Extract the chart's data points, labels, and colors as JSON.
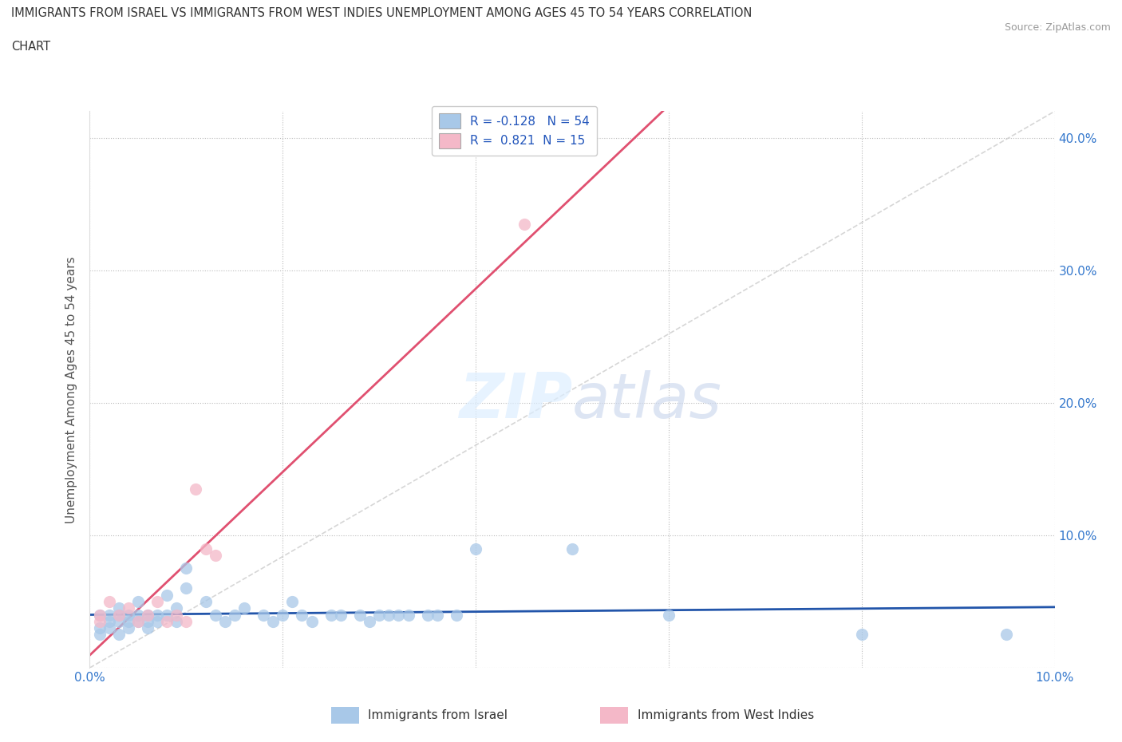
{
  "title_line1": "IMMIGRANTS FROM ISRAEL VS IMMIGRANTS FROM WEST INDIES UNEMPLOYMENT AMONG AGES 45 TO 54 YEARS CORRELATION",
  "title_line2": "CHART",
  "source": "Source: ZipAtlas.com",
  "ylabel": "Unemployment Among Ages 45 to 54 years",
  "xlim": [
    0.0,
    0.1
  ],
  "ylim": [
    0.0,
    0.42
  ],
  "israel_color": "#a8c8e8",
  "west_indies_color": "#f4b8c8",
  "israel_line_color": "#2255aa",
  "west_indies_line_color": "#e05070",
  "diagonal_color": "#cccccc",
  "israel_R": -0.128,
  "israel_N": 54,
  "west_indies_R": 0.821,
  "west_indies_N": 15,
  "legend_label_israel": "Immigrants from Israel",
  "legend_label_west_indies": "Immigrants from West Indies",
  "israel_x": [
    0.001,
    0.001,
    0.001,
    0.002,
    0.002,
    0.002,
    0.003,
    0.003,
    0.003,
    0.003,
    0.004,
    0.004,
    0.004,
    0.005,
    0.005,
    0.005,
    0.006,
    0.006,
    0.006,
    0.007,
    0.007,
    0.008,
    0.008,
    0.009,
    0.009,
    0.01,
    0.01,
    0.012,
    0.013,
    0.014,
    0.015,
    0.016,
    0.018,
    0.019,
    0.02,
    0.021,
    0.022,
    0.023,
    0.025,
    0.026,
    0.028,
    0.029,
    0.03,
    0.031,
    0.032,
    0.033,
    0.035,
    0.036,
    0.038,
    0.04,
    0.05,
    0.06,
    0.08,
    0.095
  ],
  "israel_y": [
    0.04,
    0.03,
    0.025,
    0.04,
    0.035,
    0.03,
    0.045,
    0.04,
    0.035,
    0.025,
    0.04,
    0.035,
    0.03,
    0.05,
    0.04,
    0.035,
    0.04,
    0.035,
    0.03,
    0.04,
    0.035,
    0.055,
    0.04,
    0.045,
    0.035,
    0.075,
    0.06,
    0.05,
    0.04,
    0.035,
    0.04,
    0.045,
    0.04,
    0.035,
    0.04,
    0.05,
    0.04,
    0.035,
    0.04,
    0.04,
    0.04,
    0.035,
    0.04,
    0.04,
    0.04,
    0.04,
    0.04,
    0.04,
    0.04,
    0.09,
    0.09,
    0.04,
    0.025,
    0.025
  ],
  "west_indies_x": [
    0.001,
    0.001,
    0.002,
    0.003,
    0.004,
    0.005,
    0.006,
    0.007,
    0.008,
    0.009,
    0.01,
    0.011,
    0.012,
    0.013,
    0.045
  ],
  "west_indies_y": [
    0.04,
    0.035,
    0.05,
    0.04,
    0.045,
    0.035,
    0.04,
    0.05,
    0.035,
    0.04,
    0.035,
    0.135,
    0.09,
    0.085,
    0.335
  ]
}
